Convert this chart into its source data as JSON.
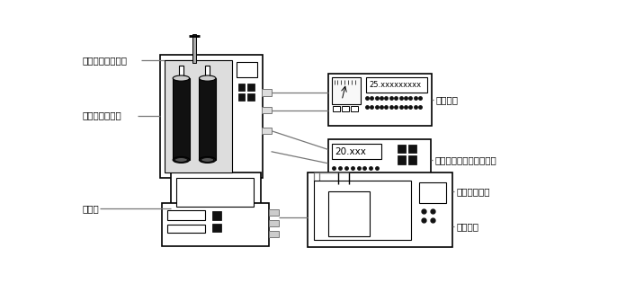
{
  "bg": "#ffffff",
  "lc": "#000000",
  "gc": "#777777",
  "dc": "#111111",
  "gf": "#f2f2f2",
  "ig": "#dddddd",
  "label_fs": 7.5,
  "bridge_display": "25.xxxxxxxxx",
  "therm_display": "20.xxx",
  "labels": {
    "std_pt": "标准铂电阻温度计",
    "triple_bath": "水三相点恒温槽",
    "computer": "计算机",
    "temp_bridge": "测温电桥",
    "precision_therm": "精密数显热敏电阻温度计",
    "precision_oil": "精密恒温油槽",
    "std_resistor": "标准电阻"
  },
  "bath": [
    118,
    30,
    148,
    178
  ],
  "bridge": [
    360,
    58,
    150,
    75
  ],
  "therm": [
    360,
    152,
    148,
    60
  ],
  "mon": [
    133,
    200,
    130,
    58
  ],
  "tower": [
    120,
    245,
    155,
    62
  ],
  "oil": [
    330,
    200,
    210,
    108
  ]
}
